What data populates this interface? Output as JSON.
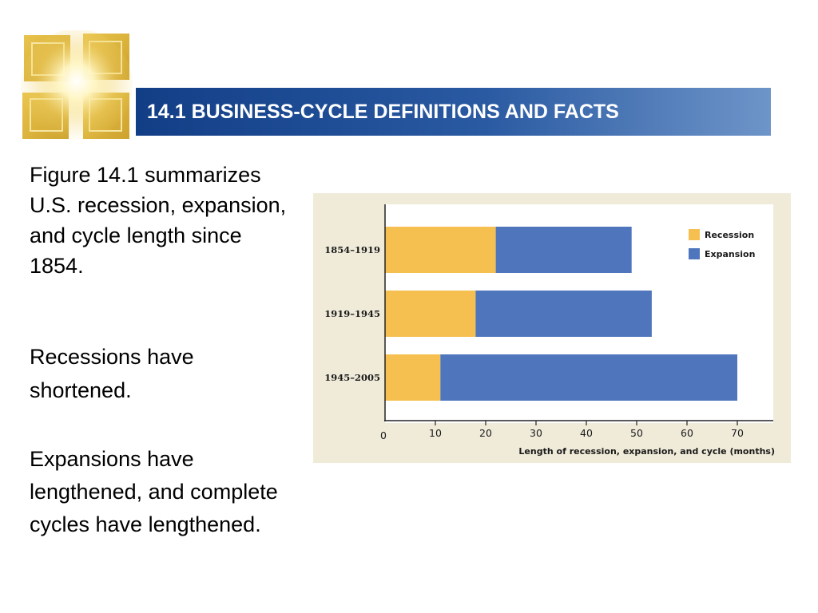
{
  "slide": {
    "title": "14.1 BUSINESS-CYCLE DEFINITIONS AND FACTS",
    "paragraphs": [
      "Figure 14.1 summarizes U.S. recession, expansion, and cycle length since 1854.",
      "Recessions have shortened.",
      "Expansions have lengthened, and complete cycles have lengthened."
    ]
  },
  "colors": {
    "title_bar": "#1f4d95",
    "recession": "#f5c04f",
    "expansion": "#4f76bd",
    "chart_background": "#f0ebd9"
  },
  "chart_data": {
    "type": "bar",
    "orientation": "horizontal",
    "stacked": true,
    "categories": [
      "1854–1919",
      "1919–1945",
      "1945–2005"
    ],
    "series": [
      {
        "name": "Recession",
        "values": [
          22,
          18,
          11
        ]
      },
      {
        "name": "Expansion",
        "values": [
          27,
          35,
          59
        ]
      }
    ],
    "totals": [
      49,
      53,
      70
    ],
    "xlabel": "Length of recession, expansion, and cycle (months)",
    "ylabel": "",
    "xlim": [
      0,
      77
    ],
    "xticks": [
      0,
      10,
      20,
      30,
      40,
      50,
      60,
      70
    ],
    "legend": {
      "position": "top-right",
      "items": [
        "Recession",
        "Expansion"
      ]
    },
    "grid": false
  }
}
